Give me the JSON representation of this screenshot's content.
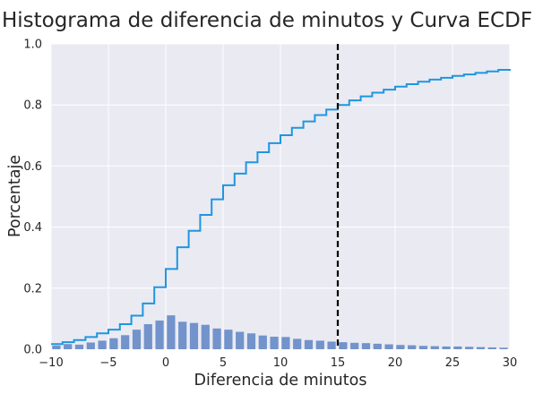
{
  "chart_data": {
    "type": "bar",
    "title": "Histograma de diferencia de minutos y Curva ECDF",
    "xlabel": "Diferencia de minutos",
    "ylabel": "Porcentaje",
    "xlim": [
      -10,
      30
    ],
    "ylim": [
      0,
      1.0
    ],
    "xticks": [
      -10,
      -5,
      0,
      5,
      10,
      15,
      20,
      25,
      30
    ],
    "xtick_labels": [
      "−10",
      "−5",
      "0",
      "5",
      "10",
      "15",
      "20",
      "25",
      "30"
    ],
    "yticks": [
      0,
      0.2,
      0.4,
      0.6,
      0.8,
      1.0
    ],
    "ytick_labels": [
      "0.0",
      "0.2",
      "0.4",
      "0.6",
      "0.8",
      "1.0"
    ],
    "grid": true,
    "colors": {
      "background": "#EAEAF2",
      "grid": "#FFFFFF",
      "histogram": "#7293CB",
      "ecdf": "#1F96E0",
      "reference_line": "#000000"
    },
    "series": [
      {
        "type": "histogram",
        "bins": [
          {
            "x": -10,
            "value": 0.012
          },
          {
            "x": -9,
            "value": 0.017
          },
          {
            "x": -8,
            "value": 0.015
          },
          {
            "x": -7,
            "value": 0.022
          },
          {
            "x": -6,
            "value": 0.028
          },
          {
            "x": -5,
            "value": 0.036
          },
          {
            "x": -4,
            "value": 0.046
          },
          {
            "x": -3,
            "value": 0.064
          },
          {
            "x": -2,
            "value": 0.082
          },
          {
            "x": -1,
            "value": 0.094
          },
          {
            "x": 0,
            "value": 0.111
          },
          {
            "x": 1,
            "value": 0.09
          },
          {
            "x": 2,
            "value": 0.086
          },
          {
            "x": 3,
            "value": 0.08
          },
          {
            "x": 4,
            "value": 0.068
          },
          {
            "x": 5,
            "value": 0.064
          },
          {
            "x": 6,
            "value": 0.057
          },
          {
            "x": 7,
            "value": 0.052
          },
          {
            "x": 8,
            "value": 0.045
          },
          {
            "x": 9,
            "value": 0.041
          },
          {
            "x": 10,
            "value": 0.04
          },
          {
            "x": 11,
            "value": 0.034
          },
          {
            "x": 12,
            "value": 0.03
          },
          {
            "x": 13,
            "value": 0.028
          },
          {
            "x": 14,
            "value": 0.025
          },
          {
            "x": 15,
            "value": 0.023
          },
          {
            "x": 16,
            "value": 0.021
          },
          {
            "x": 17,
            "value": 0.02
          },
          {
            "x": 18,
            "value": 0.018
          },
          {
            "x": 19,
            "value": 0.016
          },
          {
            "x": 20,
            "value": 0.014
          },
          {
            "x": 21,
            "value": 0.013
          },
          {
            "x": 22,
            "value": 0.011
          },
          {
            "x": 23,
            "value": 0.01
          },
          {
            "x": 24,
            "value": 0.009
          },
          {
            "x": 25,
            "value": 0.009
          },
          {
            "x": 26,
            "value": 0.008
          },
          {
            "x": 27,
            "value": 0.007
          },
          {
            "x": 28,
            "value": 0.006
          },
          {
            "x": 29,
            "value": 0.005
          }
        ]
      },
      {
        "type": "ecdf",
        "x": [
          -10,
          -9,
          -8,
          -7,
          -6,
          -5,
          -4,
          -3,
          -2,
          -1,
          0,
          1,
          2,
          3,
          4,
          5,
          6,
          7,
          8,
          9,
          10,
          11,
          12,
          13,
          14,
          15,
          16,
          17,
          18,
          19,
          20,
          21,
          22,
          23,
          24,
          25,
          26,
          27,
          28,
          29,
          30
        ],
        "y": [
          0.017,
          0.023,
          0.03,
          0.04,
          0.052,
          0.064,
          0.082,
          0.11,
          0.15,
          0.203,
          0.263,
          0.334,
          0.388,
          0.44,
          0.491,
          0.537,
          0.575,
          0.612,
          0.645,
          0.675,
          0.701,
          0.725,
          0.746,
          0.767,
          0.785,
          0.8,
          0.815,
          0.828,
          0.84,
          0.85,
          0.86,
          0.868,
          0.876,
          0.883,
          0.889,
          0.895,
          0.9,
          0.905,
          0.91,
          0.915,
          0.918
        ]
      }
    ],
    "reference_line": {
      "x": 15,
      "style": "dashed"
    }
  }
}
